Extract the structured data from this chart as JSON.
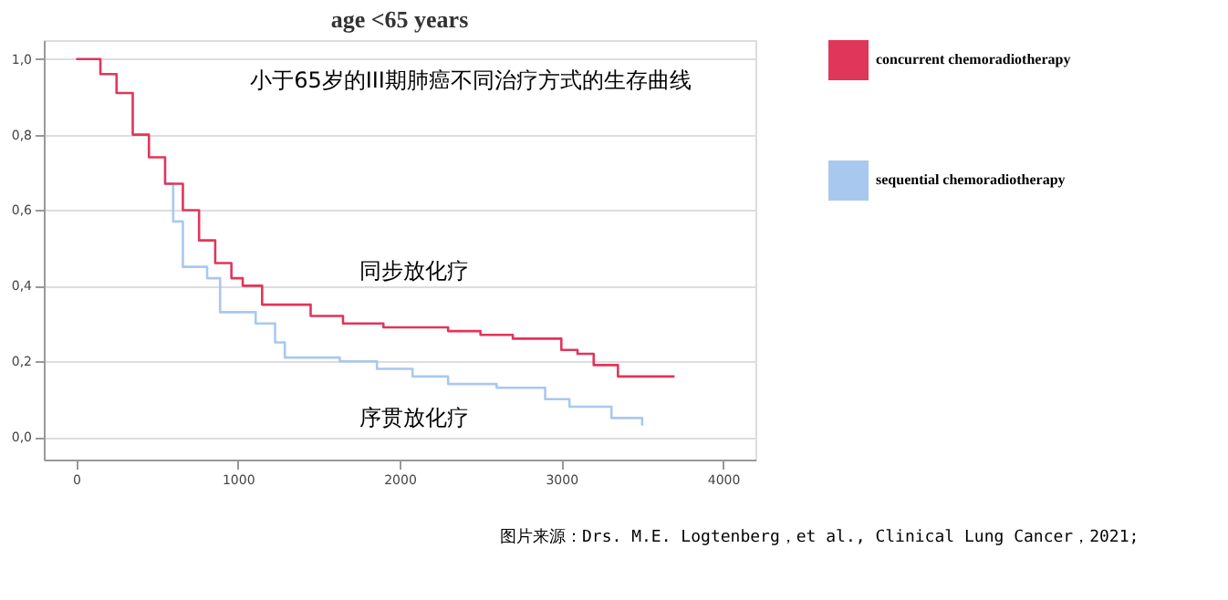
{
  "chart_data": {
    "type": "step",
    "title": "age <65 years",
    "subtitle": "小于65岁的III期肺癌不同治疗方式的生存曲线",
    "series": [
      {
        "name": "concurrent chemoradiotherapy",
        "color": "#e0365a",
        "x": [
          0,
          70,
          150,
          250,
          350,
          450,
          550,
          660,
          760,
          860,
          960,
          1030,
          1150,
          1450,
          1650,
          1900,
          2100,
          2300,
          2500,
          2700,
          2900,
          3000,
          3100,
          3200,
          3350,
          3700
        ],
        "values": [
          1.0,
          1.0,
          0.96,
          0.91,
          0.8,
          0.74,
          0.67,
          0.6,
          0.52,
          0.46,
          0.42,
          0.4,
          0.35,
          0.32,
          0.3,
          0.29,
          0.29,
          0.28,
          0.27,
          0.26,
          0.26,
          0.23,
          0.22,
          0.19,
          0.16,
          0.16
        ]
      },
      {
        "name": "sequential chemoradiotherapy",
        "color": "#a9c8ef",
        "x": [
          550,
          600,
          660,
          810,
          890,
          1110,
          1230,
          1290,
          1630,
          1860,
          2080,
          2300,
          2600,
          2900,
          3050,
          3310,
          3500
        ],
        "values": [
          0.67,
          0.57,
          0.45,
          0.42,
          0.33,
          0.3,
          0.25,
          0.21,
          0.2,
          0.18,
          0.16,
          0.14,
          0.13,
          0.1,
          0.08,
          0.05,
          0.03
        ]
      }
    ],
    "annotations": [
      "同步放化疗",
      "序贯放化疗",
      "图片来源：Drs. M.E. Logtenberg，et al., Clinical Lung Cancer，2021;"
    ],
    "xlim": [
      -200,
      4200
    ],
    "xticks": [
      0,
      1000,
      2000,
      3000,
      4000
    ],
    "ylim": [
      -0.06,
      1.05
    ],
    "yticks": [
      {
        "value": 0,
        "label": "0,0"
      },
      {
        "value": 0.2,
        "label": "0,2"
      },
      {
        "value": 0.4,
        "label": "0,4"
      },
      {
        "value": 0.6,
        "label": "0,6"
      },
      {
        "value": 0.8,
        "label": "0,8"
      },
      {
        "value": 1.0,
        "label": "1,0"
      }
    ],
    "grid": "y",
    "legend": "right"
  }
}
